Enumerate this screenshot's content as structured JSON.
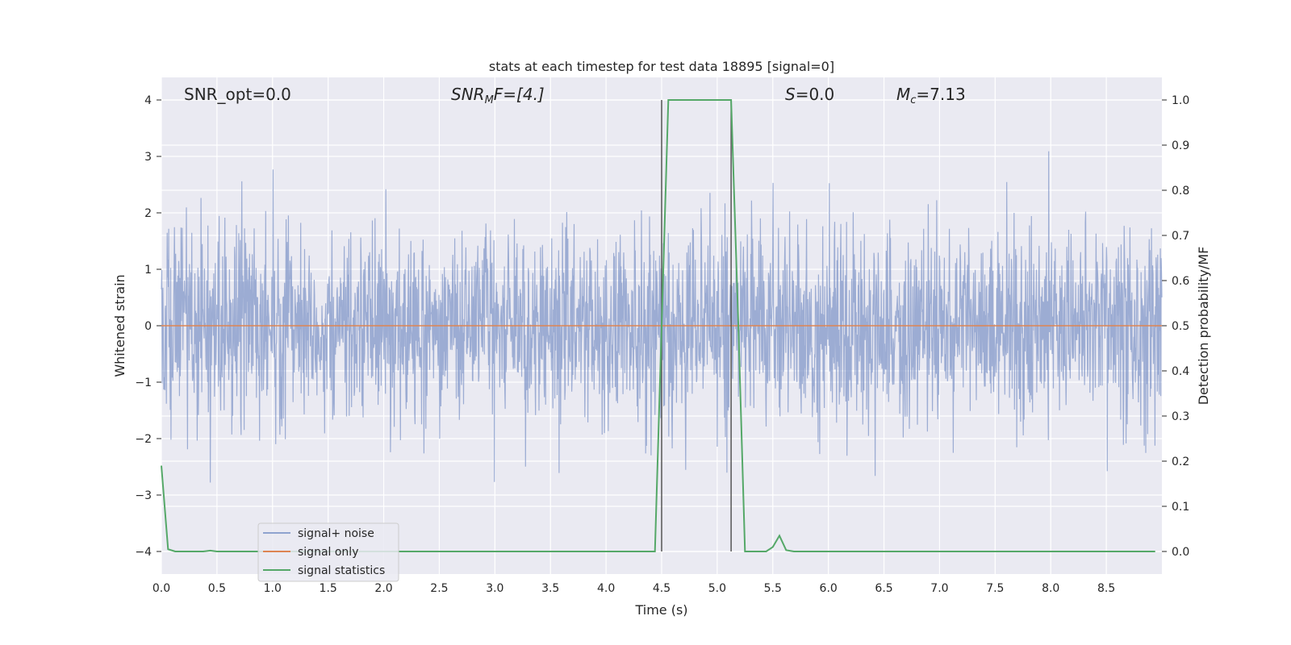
{
  "chart_data": {
    "type": "line",
    "title": "stats at each timestep for test data 18895 [signal=0]",
    "xlabel": "Time (s)",
    "ylabel": "Whitened strain",
    "y2label": "Detection probability/MF",
    "xlim": [
      0.0,
      9.0
    ],
    "ylim": [
      -4.4,
      4.4
    ],
    "y2lim": [
      -0.05,
      1.05
    ],
    "x_ticks": [
      "0.0",
      "0.5",
      "1.0",
      "1.5",
      "2.0",
      "2.5",
      "3.0",
      "3.5",
      "4.0",
      "4.5",
      "5.0",
      "5.5",
      "6.0",
      "6.5",
      "7.0",
      "7.5",
      "8.0",
      "8.5"
    ],
    "y_ticks": [
      "4",
      "3",
      "2",
      "1",
      "0",
      "−1",
      "−2",
      "−3",
      "−4"
    ],
    "y2_ticks": [
      "1.0",
      "0.9",
      "0.8",
      "0.7",
      "0.6",
      "0.5",
      "0.4",
      "0.3",
      "0.2",
      "0.1",
      "0.0"
    ],
    "grid": true,
    "legend_position": "lower-left",
    "annotations": {
      "snr_opt": "SNR_opt=0.0",
      "snr_mf_base": "SNR",
      "snr_mf_sub": "M",
      "snr_mf_rest": "F=[4.]",
      "s_var": "S",
      "s_rest": "=0.0",
      "mc_base": "M",
      "mc_sub": "c",
      "mc_rest": "=7.13"
    },
    "vertical_lines": [
      {
        "x": 4.5,
        "y_top": 4.0,
        "y_bottom": -4.0
      },
      {
        "x": 5.125,
        "y_top": 4.0,
        "y_bottom": -4.0
      }
    ],
    "series": [
      {
        "name": "signal+ noise",
        "color": "#7a92c6",
        "description_values": {
          "kind": "noise",
          "sigma": 0.85,
          "n_samples": 2600,
          "x_range": [
            0.0,
            9.0
          ]
        }
      },
      {
        "name": "signal only",
        "color": "#dd8452",
        "x": [
          0.0,
          9.0
        ],
        "y": [
          0.0,
          0.0
        ]
      },
      {
        "name": "signal statistics",
        "color": "#55a868",
        "axis": "right",
        "x": [
          0.0,
          0.06,
          0.125,
          0.25,
          0.375,
          0.44,
          0.5,
          0.75,
          1.0,
          2.0,
          3.0,
          4.0,
          4.375,
          4.44,
          4.5,
          4.56,
          5.0,
          5.125,
          5.19,
          5.25,
          5.31,
          5.44,
          5.5,
          5.56,
          5.62,
          5.69,
          6.0,
          7.0,
          8.0,
          8.94
        ],
        "y": [
          0.19,
          0.005,
          0.0,
          0.0,
          0.0,
          0.002,
          0.0,
          0.0,
          0.0,
          0.0,
          0.0,
          0.0,
          0.0,
          0.0,
          0.5,
          1.0,
          1.0,
          1.0,
          0.5,
          0.0,
          0.0,
          0.0,
          0.01,
          0.035,
          0.003,
          0.0,
          0.0,
          0.0,
          0.0,
          0.0
        ]
      }
    ]
  }
}
